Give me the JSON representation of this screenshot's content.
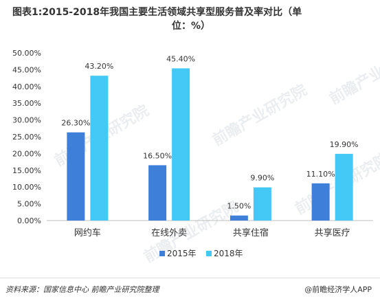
{
  "header": {
    "title_line1": "图表1:2015-2018年我国主要生活领域共享型服务普及率对比（单",
    "title_line2": "位：%）"
  },
  "watermark": {
    "text": "前瞻产业研究院"
  },
  "footer": {
    "source": "资料来源：国家信息中心 前瞻产业研究院整理",
    "brand": "@前瞻经济学人APP"
  },
  "chart_data": {
    "type": "bar",
    "title": "图表1:2015-2018年我国主要生活领域共享型服务普及率对比（单位：%）",
    "categories": [
      "网约车",
      "在线外卖",
      "共享住宿",
      "共享医疗"
    ],
    "series": [
      {
        "name": "2015年",
        "values": [
          26.3,
          16.5,
          1.5,
          11.1
        ],
        "color": "#3d7fd9"
      },
      {
        "name": "2018年",
        "values": [
          43.2,
          45.4,
          9.9,
          19.9
        ],
        "color": "#44c8f5"
      }
    ],
    "ylim": [
      0,
      50
    ],
    "yticks": [
      "0.00%",
      "5.00%",
      "10.00%",
      "15.00%",
      "20.00%",
      "25.00%",
      "30.00%",
      "35.00%",
      "40.00%",
      "45.00%",
      "50.00%"
    ],
    "data_labels": [
      [
        "26.30%",
        "16.50%",
        "1.50%",
        "11.10%"
      ],
      [
        "43.20%",
        "45.40%",
        "9.90%",
        "19.90%"
      ]
    ],
    "legend_position": "bottom",
    "grid": false
  }
}
